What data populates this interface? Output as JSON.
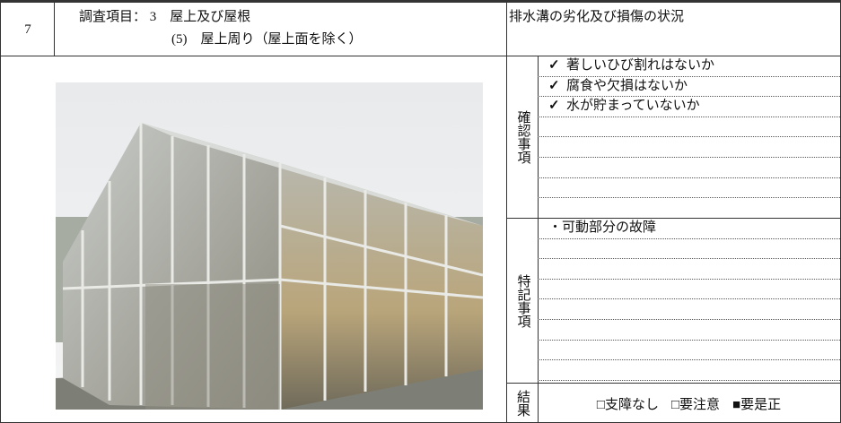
{
  "header": {
    "number": "7",
    "item_line1": "調査項目： 3　屋上及び屋根",
    "item_line2": "(5)　屋上周り（屋上面を除く）",
    "subject": "排水溝の劣化及び損傷の状況"
  },
  "check": {
    "label": "確認事項",
    "items": [
      {
        "mark": "✓",
        "text": "著しいひび割れはないか"
      },
      {
        "mark": "✓",
        "text": "腐食や欠損はないか"
      },
      {
        "mark": "✓",
        "text": "水が貯まっていないか"
      }
    ]
  },
  "notes": {
    "label": "特記事項",
    "items": [
      "・可動部分の故障"
    ]
  },
  "result": {
    "label": "結果",
    "options": [
      "□支障なし",
      "□要注意",
      "■要是正"
    ]
  }
}
